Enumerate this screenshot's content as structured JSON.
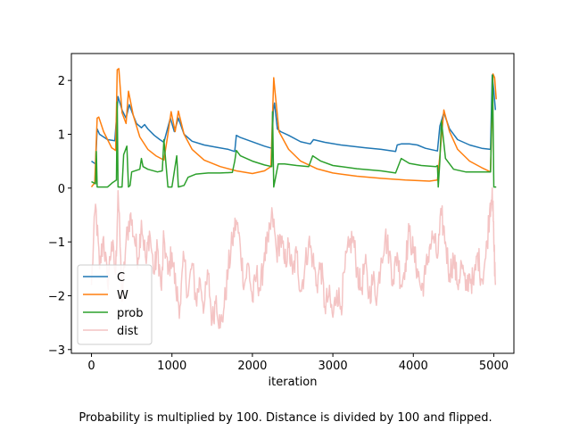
{
  "caption": "Probability is multiplied by 100. Distance is divided by 100 and flipped.",
  "chart_data": {
    "type": "line",
    "title": "",
    "xlabel": "iteration",
    "ylabel": "",
    "xlim": [
      -250,
      5250
    ],
    "ylim": [
      -3.07,
      2.5
    ],
    "xticks": [
      0,
      1000,
      2000,
      3000,
      4000,
      5000
    ],
    "xtick_labels": [
      "0",
      "1000",
      "2000",
      "3000",
      "4000",
      "5000"
    ],
    "yticks": [
      -3,
      -2,
      -1,
      0,
      1,
      2
    ],
    "ytick_labels": [
      "−3",
      "−2",
      "−1",
      "0",
      "1",
      "2"
    ],
    "grid": false,
    "legend_position": "lower-left",
    "series": [
      {
        "name": "C",
        "color": "#1f77b4",
        "points": [
          [
            0,
            0.5
          ],
          [
            50,
            0.45
          ],
          [
            70,
            1.1
          ],
          [
            100,
            1.0
          ],
          [
            200,
            0.9
          ],
          [
            290,
            0.88
          ],
          [
            330,
            1.7
          ],
          [
            380,
            1.45
          ],
          [
            430,
            1.3
          ],
          [
            470,
            1.55
          ],
          [
            520,
            1.35
          ],
          [
            560,
            1.2
          ],
          [
            620,
            1.12
          ],
          [
            660,
            1.18
          ],
          [
            700,
            1.1
          ],
          [
            780,
            0.98
          ],
          [
            850,
            0.9
          ],
          [
            900,
            0.85
          ],
          [
            980,
            1.3
          ],
          [
            1030,
            1.05
          ],
          [
            1080,
            1.3
          ],
          [
            1150,
            1.0
          ],
          [
            1250,
            0.87
          ],
          [
            1400,
            0.8
          ],
          [
            1550,
            0.76
          ],
          [
            1700,
            0.72
          ],
          [
            1780,
            0.68
          ],
          [
            1800,
            0.98
          ],
          [
            1850,
            0.94
          ],
          [
            2000,
            0.86
          ],
          [
            2150,
            0.78
          ],
          [
            2240,
            0.74
          ],
          [
            2260,
            1.45
          ],
          [
            2275,
            1.58
          ],
          [
            2310,
            1.1
          ],
          [
            2350,
            1.05
          ],
          [
            2450,
            0.98
          ],
          [
            2600,
            0.86
          ],
          [
            2720,
            0.82
          ],
          [
            2760,
            0.9
          ],
          [
            2900,
            0.85
          ],
          [
            3100,
            0.8
          ],
          [
            3400,
            0.75
          ],
          [
            3600,
            0.72
          ],
          [
            3780,
            0.68
          ],
          [
            3800,
            0.8
          ],
          [
            3850,
            0.82
          ],
          [
            3950,
            0.82
          ],
          [
            4050,
            0.8
          ],
          [
            4150,
            0.74
          ],
          [
            4300,
            0.69
          ],
          [
            4330,
            1.15
          ],
          [
            4380,
            1.4
          ],
          [
            4450,
            1.1
          ],
          [
            4550,
            0.9
          ],
          [
            4700,
            0.8
          ],
          [
            4850,
            0.74
          ],
          [
            4960,
            0.72
          ],
          [
            4980,
            2.1
          ],
          [
            5000,
            1.8
          ],
          [
            5020,
            1.45
          ]
        ]
      },
      {
        "name": "W",
        "color": "#ff7f0e",
        "points": [
          [
            0,
            0.02
          ],
          [
            40,
            0.1
          ],
          [
            70,
            1.3
          ],
          [
            90,
            1.32
          ],
          [
            150,
            1.05
          ],
          [
            250,
            0.75
          ],
          [
            300,
            0.7
          ],
          [
            320,
            2.2
          ],
          [
            340,
            2.22
          ],
          [
            380,
            1.4
          ],
          [
            430,
            1.2
          ],
          [
            460,
            1.8
          ],
          [
            520,
            1.35
          ],
          [
            600,
            0.95
          ],
          [
            700,
            0.72
          ],
          [
            800,
            0.6
          ],
          [
            900,
            0.52
          ],
          [
            950,
            1.0
          ],
          [
            990,
            1.42
          ],
          [
            1040,
            1.05
          ],
          [
            1080,
            1.43
          ],
          [
            1150,
            1.0
          ],
          [
            1250,
            0.72
          ],
          [
            1400,
            0.52
          ],
          [
            1600,
            0.4
          ],
          [
            1800,
            0.32
          ],
          [
            2000,
            0.27
          ],
          [
            2150,
            0.32
          ],
          [
            2230,
            0.4
          ],
          [
            2265,
            2.05
          ],
          [
            2280,
            1.8
          ],
          [
            2330,
            1.05
          ],
          [
            2450,
            0.72
          ],
          [
            2600,
            0.5
          ],
          [
            2800,
            0.36
          ],
          [
            3000,
            0.28
          ],
          [
            3300,
            0.22
          ],
          [
            3600,
            0.18
          ],
          [
            3900,
            0.15
          ],
          [
            4200,
            0.13
          ],
          [
            4300,
            0.15
          ],
          [
            4330,
            0.6
          ],
          [
            4380,
            1.45
          ],
          [
            4450,
            1.05
          ],
          [
            4550,
            0.72
          ],
          [
            4700,
            0.5
          ],
          [
            4850,
            0.38
          ],
          [
            4960,
            0.3
          ],
          [
            4990,
            2.12
          ],
          [
            5010,
            2.05
          ],
          [
            5030,
            1.65
          ]
        ]
      },
      {
        "name": "prob",
        "color": "#2ca02c",
        "points": [
          [
            0,
            0.12
          ],
          [
            50,
            0.08
          ],
          [
            60,
            0.68
          ],
          [
            70,
            0.02
          ],
          [
            200,
            0.02
          ],
          [
            260,
            0.1
          ],
          [
            310,
            0.15
          ],
          [
            320,
            1.6
          ],
          [
            330,
            0.02
          ],
          [
            380,
            0.02
          ],
          [
            400,
            0.62
          ],
          [
            440,
            0.78
          ],
          [
            460,
            0.02
          ],
          [
            480,
            0.05
          ],
          [
            500,
            0.3
          ],
          [
            600,
            0.35
          ],
          [
            620,
            0.55
          ],
          [
            640,
            0.4
          ],
          [
            700,
            0.35
          ],
          [
            820,
            0.3
          ],
          [
            880,
            0.32
          ],
          [
            900,
            0.9
          ],
          [
            950,
            0.02
          ],
          [
            1000,
            0.02
          ],
          [
            1060,
            0.6
          ],
          [
            1080,
            0.02
          ],
          [
            1150,
            0.05
          ],
          [
            1200,
            0.2
          ],
          [
            1300,
            0.26
          ],
          [
            1450,
            0.28
          ],
          [
            1600,
            0.28
          ],
          [
            1750,
            0.29
          ],
          [
            1780,
            0.5
          ],
          [
            1800,
            0.7
          ],
          [
            1850,
            0.6
          ],
          [
            2000,
            0.5
          ],
          [
            2150,
            0.43
          ],
          [
            2240,
            0.4
          ],
          [
            2250,
            1.42
          ],
          [
            2265,
            0.02
          ],
          [
            2320,
            0.45
          ],
          [
            2400,
            0.45
          ],
          [
            2550,
            0.42
          ],
          [
            2700,
            0.4
          ],
          [
            2750,
            0.6
          ],
          [
            2850,
            0.5
          ],
          [
            3000,
            0.42
          ],
          [
            3300,
            0.36
          ],
          [
            3600,
            0.32
          ],
          [
            3780,
            0.28
          ],
          [
            3850,
            0.55
          ],
          [
            3950,
            0.46
          ],
          [
            4100,
            0.42
          ],
          [
            4280,
            0.4
          ],
          [
            4300,
            0.42
          ],
          [
            4310,
            0.02
          ],
          [
            4330,
            0.5
          ],
          [
            4350,
            1.25
          ],
          [
            4400,
            0.55
          ],
          [
            4500,
            0.35
          ],
          [
            4650,
            0.3
          ],
          [
            4800,
            0.3
          ],
          [
            4960,
            0.3
          ],
          [
            4985,
            2.1
          ],
          [
            5000,
            0.02
          ],
          [
            5030,
            0.02
          ]
        ]
      },
      {
        "name": "dist",
        "color": "#f4c4c4",
        "noise": true,
        "points": [
          [
            0,
            -1.8
          ],
          [
            50,
            -0.3
          ],
          [
            100,
            -1.5
          ],
          [
            150,
            -0.9
          ],
          [
            200,
            -1.8
          ],
          [
            250,
            -1.0
          ],
          [
            300,
            -1.6
          ],
          [
            330,
            -0.05
          ],
          [
            380,
            -2.1
          ],
          [
            430,
            -1.0
          ],
          [
            480,
            -0.5
          ],
          [
            530,
            -0.9
          ],
          [
            580,
            -1.3
          ],
          [
            620,
            -0.6
          ],
          [
            680,
            -1.4
          ],
          [
            720,
            -0.8
          ],
          [
            780,
            -1.6
          ],
          [
            820,
            -1.1
          ],
          [
            870,
            -1.9
          ],
          [
            900,
            -0.9
          ],
          [
            950,
            -1.6
          ],
          [
            1000,
            -1.2
          ],
          [
            1050,
            -1.9
          ],
          [
            1100,
            -2.2
          ],
          [
            1150,
            -1.3
          ],
          [
            1200,
            -2.0
          ],
          [
            1250,
            -1.4
          ],
          [
            1300,
            -2.1
          ],
          [
            1350,
            -1.7
          ],
          [
            1400,
            -2.2
          ],
          [
            1450,
            -1.6
          ],
          [
            1500,
            -2.5
          ],
          [
            1550,
            -2.0
          ],
          [
            1600,
            -2.6
          ],
          [
            1650,
            -2.2
          ],
          [
            1700,
            -1.5
          ],
          [
            1750,
            -1.0
          ],
          [
            1800,
            -0.6
          ],
          [
            1850,
            -1.1
          ],
          [
            1900,
            -1.8
          ],
          [
            1950,
            -1.4
          ],
          [
            2000,
            -2.1
          ],
          [
            2050,
            -1.6
          ],
          [
            2100,
            -1.9
          ],
          [
            2150,
            -1.2
          ],
          [
            2200,
            -1.0
          ],
          [
            2250,
            -0.5
          ],
          [
            2300,
            -1.2
          ],
          [
            2350,
            -0.9
          ],
          [
            2400,
            -1.4
          ],
          [
            2450,
            -1.1
          ],
          [
            2500,
            -1.6
          ],
          [
            2550,
            -1.2
          ],
          [
            2600,
            -1.9
          ],
          [
            2650,
            -1.5
          ],
          [
            2700,
            -1.0
          ],
          [
            2750,
            -1.3
          ],
          [
            2800,
            -1.8
          ],
          [
            2850,
            -1.4
          ],
          [
            2900,
            -2.2
          ],
          [
            2950,
            -2.0
          ],
          [
            3000,
            -2.4
          ],
          [
            3050,
            -1.9
          ],
          [
            3100,
            -2.2
          ],
          [
            3150,
            -1.5
          ],
          [
            3200,
            -1.1
          ],
          [
            3250,
            -0.9
          ],
          [
            3300,
            -1.5
          ],
          [
            3350,
            -1.9
          ],
          [
            3400,
            -1.4
          ],
          [
            3450,
            -2.0
          ],
          [
            3500,
            -1.7
          ],
          [
            3550,
            -2.0
          ],
          [
            3600,
            -1.3
          ],
          [
            3650,
            -0.9
          ],
          [
            3700,
            -1.2
          ],
          [
            3750,
            -1.7
          ],
          [
            3800,
            -1.2
          ],
          [
            3850,
            -1.8
          ],
          [
            3900,
            -1.4
          ],
          [
            3950,
            -0.8
          ],
          [
            4000,
            -1.2
          ],
          [
            4050,
            -1.5
          ],
          [
            4100,
            -1.9
          ],
          [
            4150,
            -1.6
          ],
          [
            4200,
            -1.1
          ],
          [
            4250,
            -0.9
          ],
          [
            4300,
            -1.3
          ],
          [
            4350,
            -0.5
          ],
          [
            4400,
            -1.0
          ],
          [
            4450,
            -1.6
          ],
          [
            4500,
            -1.3
          ],
          [
            4550,
            -1.8
          ],
          [
            4600,
            -1.4
          ],
          [
            4650,
            -1.9
          ],
          [
            4700,
            -1.6
          ],
          [
            4750,
            -1.8
          ],
          [
            4800,
            -1.2
          ],
          [
            4850,
            -1.7
          ],
          [
            4900,
            -1.3
          ],
          [
            4950,
            -0.4
          ],
          [
            4980,
            0.0
          ],
          [
            5000,
            -1.0
          ],
          [
            5020,
            -1.8
          ]
        ]
      }
    ]
  }
}
